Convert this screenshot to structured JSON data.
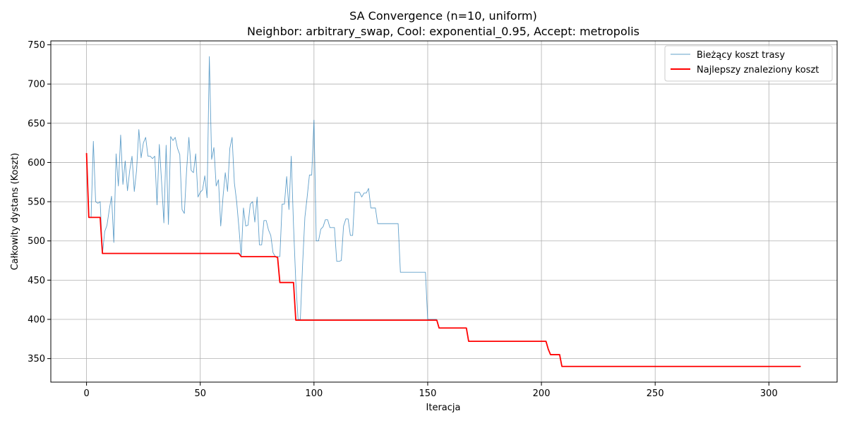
{
  "chart_data": {
    "type": "line",
    "title": "SA Convergence (n=10, uniform)",
    "subtitle": "Neighbor: arbitrary_swap, Cool: exponential_0.95, Accept: metropolis",
    "xlabel": "Iteracja",
    "ylabel": "Całkowity dystans (Koszt)",
    "xlim": [
      -15.7,
      330
    ],
    "ylim": [
      320,
      755
    ],
    "x_ticks": [
      0,
      50,
      100,
      150,
      200,
      250,
      300
    ],
    "y_ticks": [
      350,
      400,
      450,
      500,
      550,
      600,
      650,
      700,
      750
    ],
    "grid": true,
    "legend_position": "top-right",
    "series": [
      {
        "name": "Bieżący koszt trasy",
        "color": "#1f77b4",
        "points": [
          [
            0,
            612
          ],
          [
            1,
            530
          ],
          [
            2,
            530
          ],
          [
            3,
            627
          ],
          [
            4,
            550
          ],
          [
            5,
            548
          ],
          [
            6,
            550
          ],
          [
            7,
            484
          ],
          [
            8,
            512
          ],
          [
            9,
            520
          ],
          [
            10,
            540
          ],
          [
            11,
            557
          ],
          [
            12,
            498
          ],
          [
            13,
            611
          ],
          [
            14,
            570
          ],
          [
            15,
            635
          ],
          [
            16,
            572
          ],
          [
            17,
            602
          ],
          [
            18,
            564
          ],
          [
            19,
            590
          ],
          [
            20,
            608
          ],
          [
            21,
            563
          ],
          [
            22,
            590
          ],
          [
            23,
            642
          ],
          [
            24,
            606
          ],
          [
            25,
            625
          ],
          [
            26,
            632
          ],
          [
            27,
            608
          ],
          [
            28,
            608
          ],
          [
            29,
            605
          ],
          [
            30,
            608
          ],
          [
            31,
            546
          ],
          [
            32,
            623
          ],
          [
            33,
            575
          ],
          [
            34,
            523
          ],
          [
            35,
            622
          ],
          [
            36,
            521
          ],
          [
            37,
            633
          ],
          [
            38,
            628
          ],
          [
            39,
            632
          ],
          [
            40,
            618
          ],
          [
            41,
            610
          ],
          [
            42,
            540
          ],
          [
            43,
            535
          ],
          [
            44,
            590
          ],
          [
            45,
            632
          ],
          [
            46,
            590
          ],
          [
            47,
            587
          ],
          [
            48,
            611
          ],
          [
            49,
            556
          ],
          [
            50,
            562
          ],
          [
            51,
            565
          ],
          [
            52,
            583
          ],
          [
            53,
            555
          ],
          [
            54,
            735
          ],
          [
            55,
            604
          ],
          [
            56,
            619
          ],
          [
            57,
            570
          ],
          [
            58,
            578
          ],
          [
            59,
            519
          ],
          [
            60,
            556
          ],
          [
            61,
            587
          ],
          [
            62,
            563
          ],
          [
            63,
            618
          ],
          [
            64,
            632
          ],
          [
            65,
            574
          ],
          [
            66,
            550
          ],
          [
            67,
            517
          ],
          [
            68,
            480
          ],
          [
            69,
            542
          ],
          [
            70,
            519
          ],
          [
            71,
            520
          ],
          [
            72,
            547
          ],
          [
            73,
            550
          ],
          [
            74,
            524
          ],
          [
            75,
            556
          ],
          [
            76,
            495
          ],
          [
            77,
            495
          ],
          [
            78,
            526
          ],
          [
            79,
            526
          ],
          [
            80,
            514
          ],
          [
            81,
            507
          ],
          [
            82,
            485
          ],
          [
            83,
            480
          ],
          [
            84,
            480
          ],
          [
            85,
            480
          ],
          [
            86,
            547
          ],
          [
            87,
            547
          ],
          [
            88,
            582
          ],
          [
            89,
            540
          ],
          [
            90,
            608
          ],
          [
            91,
            520
          ],
          [
            92,
            448
          ],
          [
            93,
            400
          ],
          [
            94,
            400
          ],
          [
            95,
            470
          ],
          [
            96,
            530
          ],
          [
            97,
            556
          ],
          [
            98,
            584
          ],
          [
            99,
            584
          ],
          [
            100,
            654
          ],
          [
            101,
            500
          ],
          [
            102,
            500
          ],
          [
            103,
            515
          ],
          [
            104,
            518
          ],
          [
            105,
            527
          ],
          [
            106,
            527
          ],
          [
            107,
            517
          ],
          [
            108,
            517
          ],
          [
            109,
            517
          ],
          [
            110,
            474
          ],
          [
            111,
            474
          ],
          [
            112,
            475
          ],
          [
            113,
            519
          ],
          [
            114,
            528
          ],
          [
            115,
            528
          ],
          [
            116,
            507
          ],
          [
            117,
            507
          ],
          [
            118,
            562
          ],
          [
            119,
            562
          ],
          [
            120,
            562
          ],
          [
            121,
            556
          ],
          [
            122,
            561
          ],
          [
            123,
            561
          ],
          [
            124,
            567
          ],
          [
            125,
            542
          ],
          [
            126,
            542
          ],
          [
            127,
            542
          ],
          [
            128,
            522
          ],
          [
            130,
            522
          ],
          [
            135,
            522
          ],
          [
            137,
            522
          ],
          [
            138,
            460
          ],
          [
            140,
            460
          ],
          [
            145,
            460
          ],
          [
            149,
            460
          ],
          [
            150,
            400
          ],
          [
            152,
            400
          ],
          [
            154,
            400
          ]
        ]
      },
      {
        "name": "Najlepszy znaleziony koszt",
        "color": "#ff0000",
        "points": [
          [
            0,
            612
          ],
          [
            1,
            530
          ],
          [
            5,
            530
          ],
          [
            6,
            530
          ],
          [
            7,
            484
          ],
          [
            67,
            484
          ],
          [
            68,
            480
          ],
          [
            83,
            480
          ],
          [
            84,
            479
          ],
          [
            85,
            447
          ],
          [
            91,
            447
          ],
          [
            92,
            399
          ],
          [
            153,
            399
          ],
          [
            154,
            399
          ],
          [
            155,
            389
          ],
          [
            167,
            389
          ],
          [
            168,
            372
          ],
          [
            201,
            372
          ],
          [
            202,
            372
          ],
          [
            203,
            362
          ],
          [
            204,
            355
          ],
          [
            208,
            355
          ],
          [
            209,
            340
          ],
          [
            314,
            340
          ]
        ]
      }
    ]
  }
}
